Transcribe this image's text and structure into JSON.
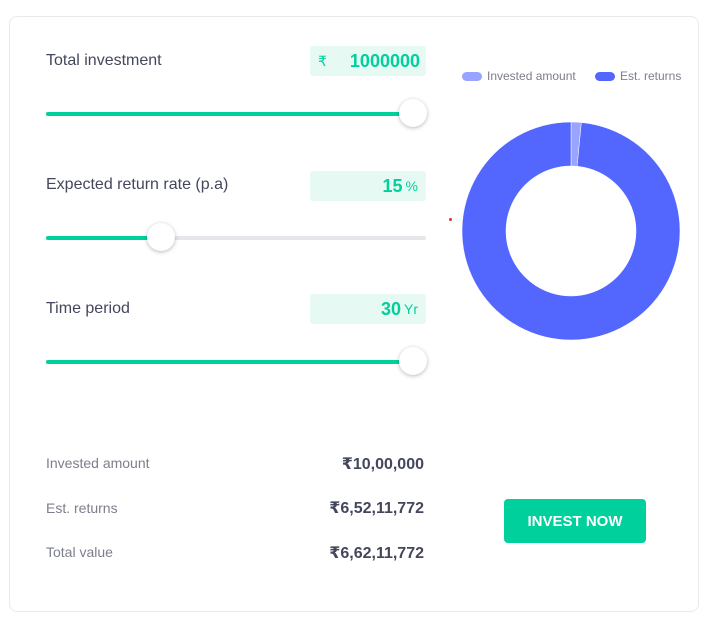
{
  "sliders": [
    {
      "label": "Total investment",
      "prefix": "₹",
      "value": "1000000",
      "unit": "",
      "fill_fraction": 0.966
    },
    {
      "label": "Expected return rate (p.a)",
      "prefix": "",
      "value": "15",
      "unit": "%",
      "fill_fraction": 0.303
    },
    {
      "label": "Time period",
      "prefix": "",
      "value": "30",
      "unit": "Yr",
      "fill_fraction": 0.966
    }
  ],
  "summary": [
    {
      "label": "Invested amount",
      "value": "₹10,00,000"
    },
    {
      "label": "Est. returns",
      "value": "₹6,52,11,772"
    },
    {
      "label": "Total value",
      "value": "₹6,62,11,772"
    }
  ],
  "chart_data": {
    "type": "pie",
    "donut": true,
    "legend_position": "top",
    "categories": [
      "Invested amount",
      "Est. returns"
    ],
    "values": [
      1000000,
      65211772
    ],
    "colors": [
      "#98a4ff",
      "#5367ff"
    ]
  },
  "colors": {
    "accent": "#00d09c",
    "invested": "#98a4ff",
    "returns": "#5367ff"
  },
  "invest_button_label": "INVEST NOW"
}
